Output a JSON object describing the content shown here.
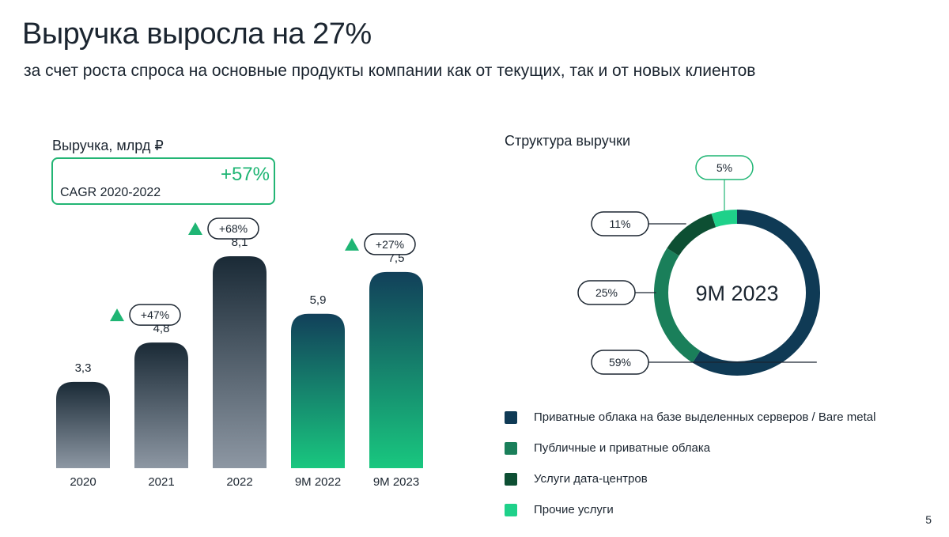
{
  "header": {
    "title": "Выручка выросла на 27%",
    "subtitle": "за счет роста спроса на основные продукты компании как от текущих, так и от новых клиентов"
  },
  "revenue_section": {
    "title": "Выручка, млрд ₽",
    "cagr_value": "+57%",
    "cagr_label": "CAGR 2020-2022"
  },
  "structure_section": {
    "title": "Структура выручки"
  },
  "page_number": "5",
  "colors": {
    "dark_navy": "#0f3a55",
    "green": "#1a7f5a",
    "dark_green": "#0d4f33",
    "light_green": "#1fd18a",
    "accent": "#22b574",
    "dark_bar": "#1a2a36"
  },
  "chart_data": [
    {
      "type": "bar",
      "title": "Выручка, млрд ₽",
      "categories": [
        "2020",
        "2021",
        "2022",
        "9M 2022",
        "9M 2023"
      ],
      "values": [
        3.3,
        4.8,
        8.1,
        5.9,
        7.5
      ],
      "value_labels": [
        "3,3",
        "4,8",
        "8,1",
        "5,9",
        "7,5"
      ],
      "ylim": [
        0,
        8.1
      ],
      "growth_annotations": [
        {
          "label": "+47%",
          "category": "2021"
        },
        {
          "label": "+68%",
          "category": "2022"
        },
        {
          "label": "+27%",
          "category": "9M 2023"
        }
      ]
    },
    {
      "type": "pie",
      "title": "Структура выручки",
      "center_label": "9M 2023",
      "slices": [
        {
          "label": "Приватные облака на базе выделенных серверов / Bare metal",
          "value": 59,
          "value_label": "59%",
          "color": "#0f3a55"
        },
        {
          "label": "Публичные и приватные облака",
          "value": 25,
          "value_label": "25%",
          "color": "#1a7f5a"
        },
        {
          "label": "Услуги дата-центров",
          "value": 11,
          "value_label": "11%",
          "color": "#0d4f33"
        },
        {
          "label": "Прочие услуги",
          "value": 5,
          "value_label": "5%",
          "color": "#1fd18a"
        }
      ]
    }
  ]
}
